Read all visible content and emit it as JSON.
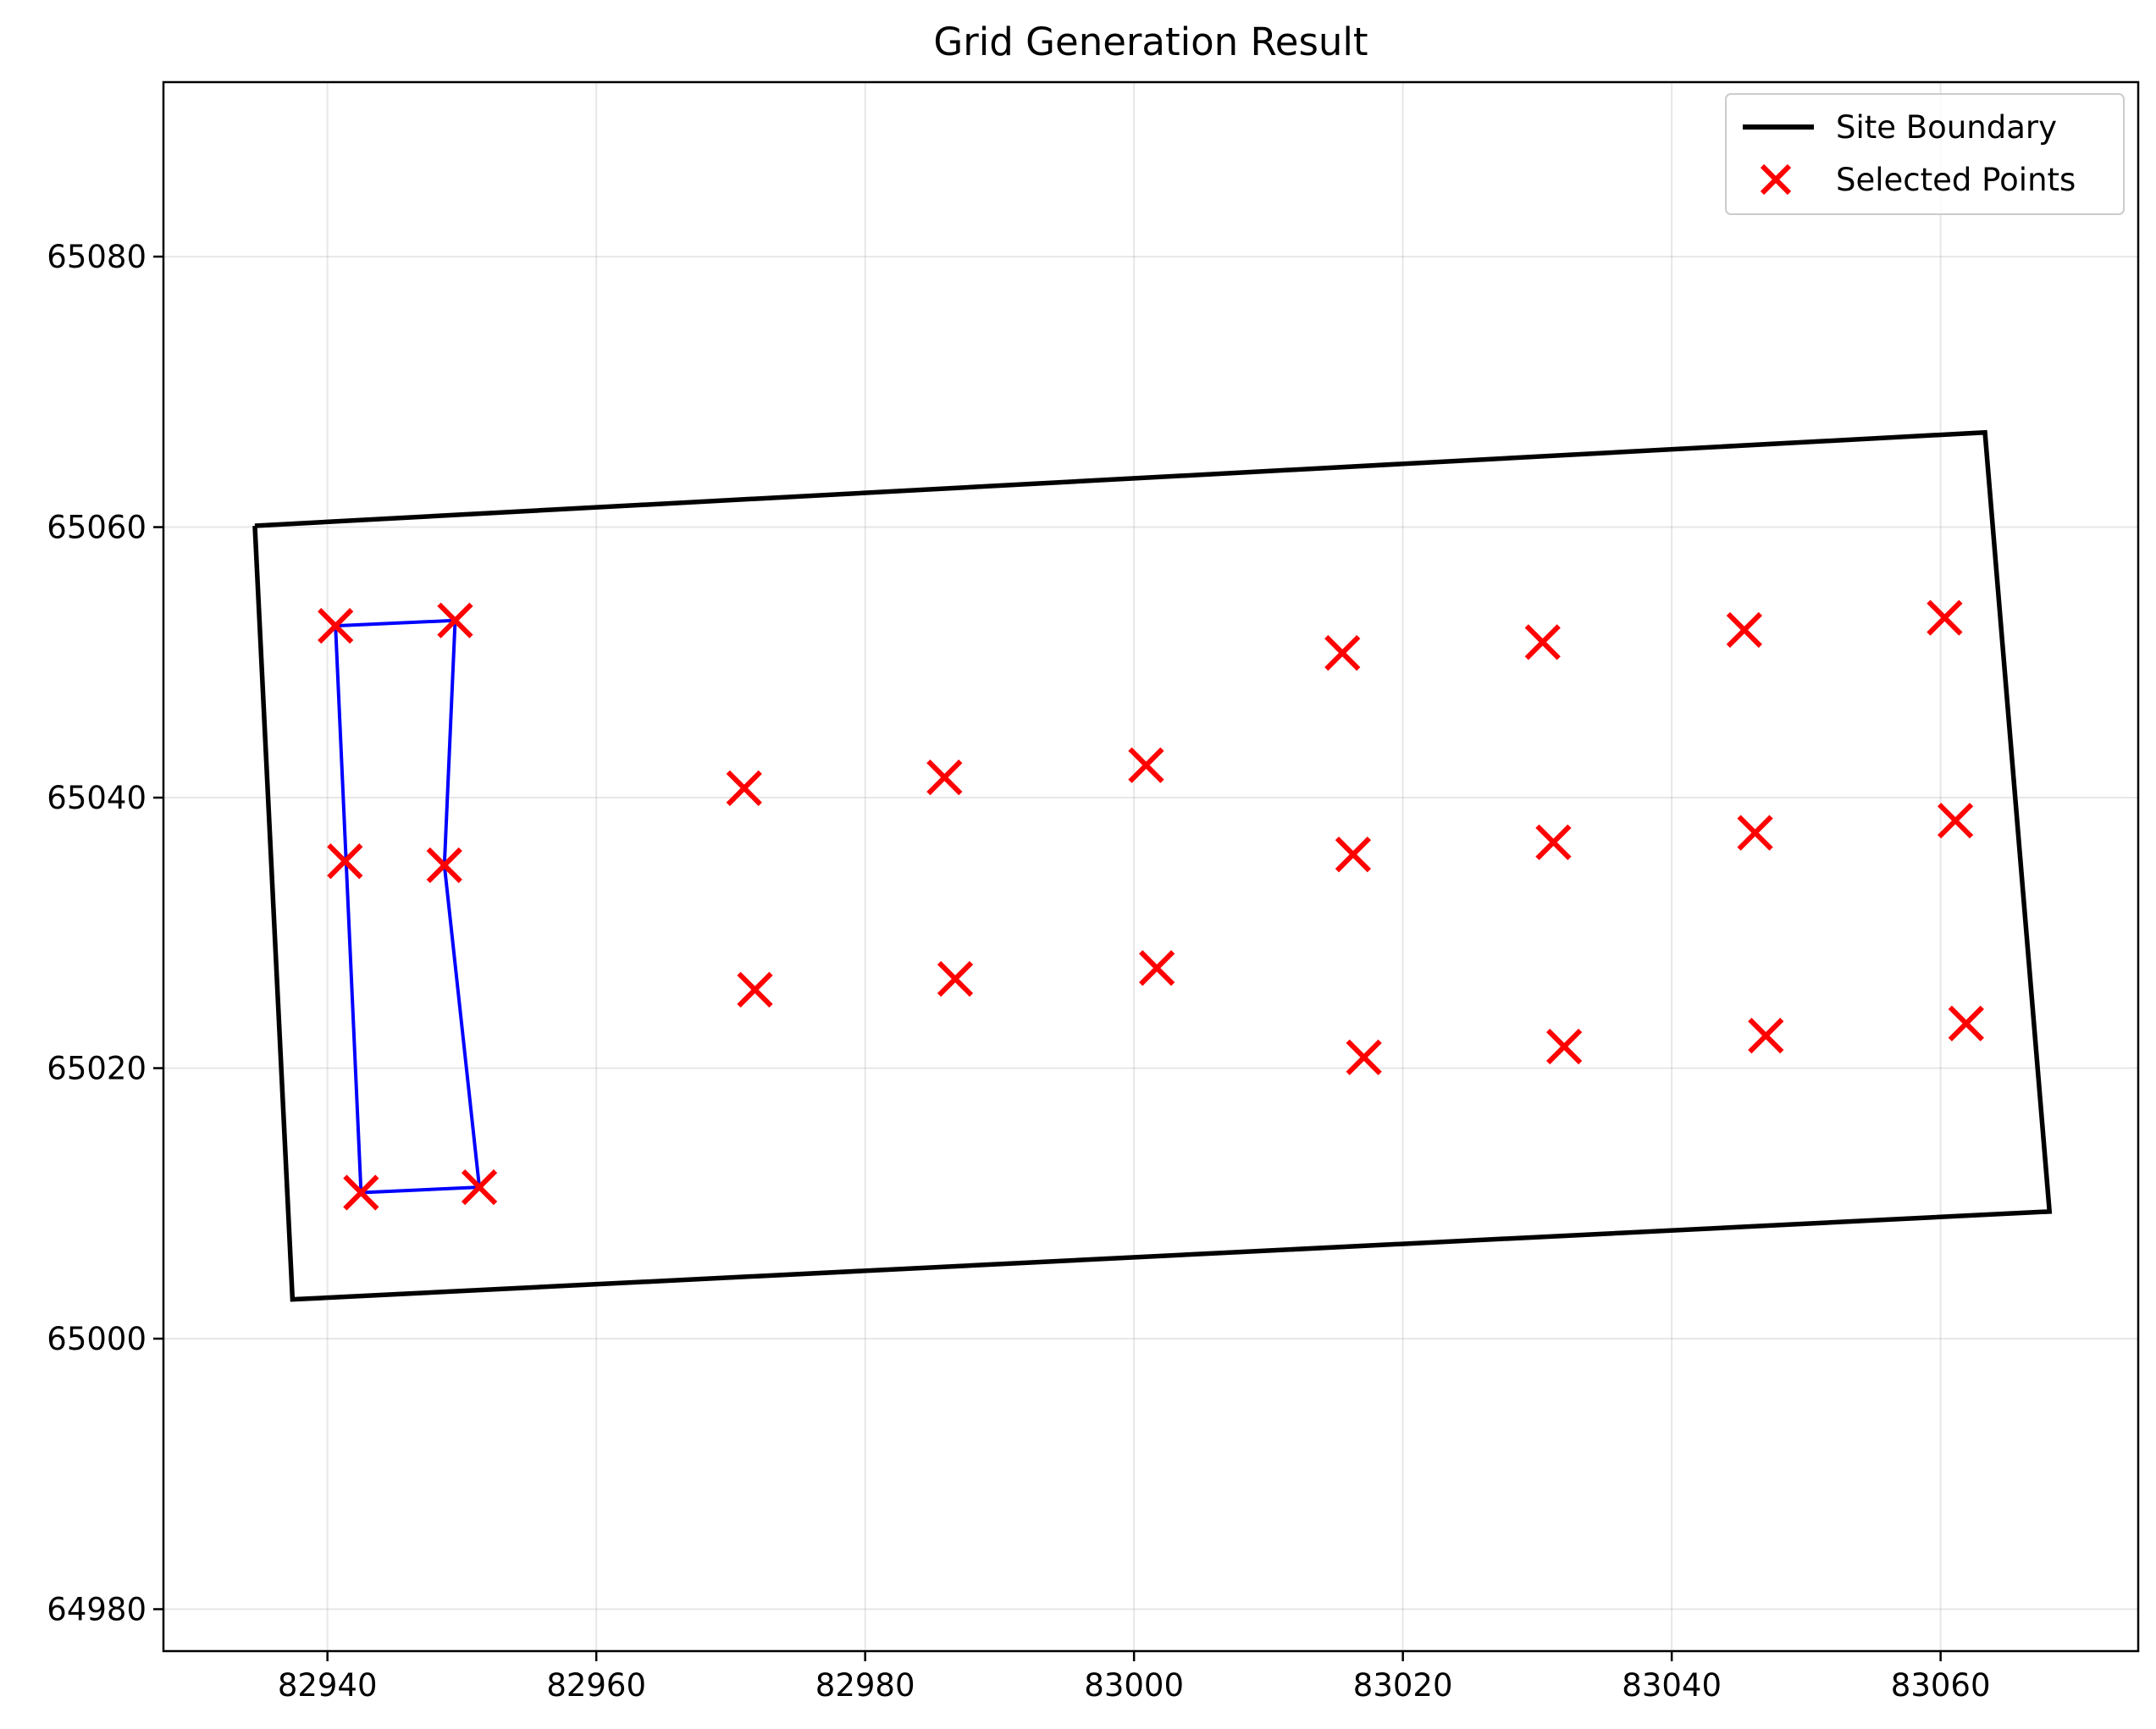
{
  "chart_data": {
    "type": "scatter",
    "title": "Grid Generation Result",
    "xlabel": "",
    "ylabel": "",
    "xlim": [
      82927.8,
      83074.7
    ],
    "ylim": [
      64976.9,
      65092.9
    ],
    "x_ticks": [
      82940,
      82960,
      82980,
      83000,
      83020,
      83040,
      83060
    ],
    "y_ticks": [
      64980,
      65000,
      65020,
      65040,
      65060,
      65080
    ],
    "grid": true,
    "legend": {
      "placement": "top-right",
      "entries": [
        "Site Boundary",
        "Selected Points"
      ]
    },
    "boundary": {
      "name": "Site Boundary",
      "color": "#000000",
      "points": [
        [
          82934.6,
          65060.1
        ],
        [
          83063.3,
          65067.0
        ],
        [
          83068.1,
          65009.4
        ],
        [
          82937.4,
          65002.9
        ],
        [
          82934.6,
          65060.1
        ]
      ]
    },
    "highlight_polygon": {
      "color": "#0000ff",
      "points": [
        [
          82940.6,
          65052.7
        ],
        [
          82949.5,
          65053.1
        ],
        [
          82948.7,
          65035.0
        ],
        [
          82951.3,
          65011.2
        ],
        [
          82942.5,
          65010.8
        ],
        [
          82940.6,
          65052.7
        ]
      ]
    },
    "points": {
      "name": "Selected Points",
      "color": "#ff0000",
      "xy": [
        [
          82940.6,
          65052.7
        ],
        [
          82949.5,
          65053.1
        ],
        [
          82941.3,
          65035.3
        ],
        [
          82948.7,
          65035.0
        ],
        [
          82942.5,
          65010.8
        ],
        [
          82951.3,
          65011.2
        ],
        [
          82971.0,
          65040.7
        ],
        [
          82985.9,
          65041.5
        ],
        [
          83000.9,
          65042.4
        ],
        [
          82971.8,
          65025.8
        ],
        [
          82986.7,
          65026.6
        ],
        [
          83001.7,
          65027.4
        ],
        [
          83015.5,
          65050.7
        ],
        [
          83030.4,
          65051.5
        ],
        [
          83045.4,
          65052.4
        ],
        [
          83060.3,
          65053.3
        ],
        [
          83016.3,
          65035.8
        ],
        [
          83031.2,
          65036.7
        ],
        [
          83046.2,
          65037.4
        ],
        [
          83061.1,
          65038.3
        ],
        [
          83017.1,
          65020.8
        ],
        [
          83032.0,
          65021.6
        ],
        [
          83047.0,
          65022.4
        ],
        [
          83061.9,
          65023.3
        ]
      ]
    }
  }
}
